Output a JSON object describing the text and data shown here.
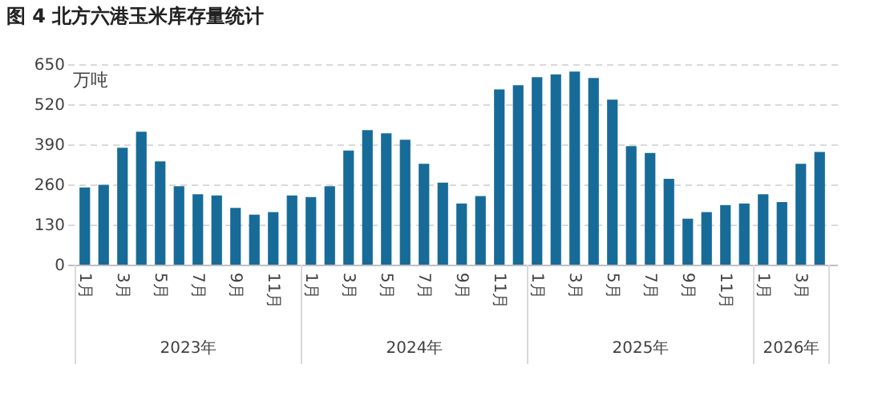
{
  "chart_data": {
    "type": "bar",
    "title": "图 4 北方六港玉米库存量统计",
    "ylabel": "万吨",
    "categories": [
      "1月",
      null,
      "3月",
      null,
      "5月",
      null,
      "7月",
      null,
      "9月",
      null,
      "11月",
      null,
      "1月",
      null,
      "3月",
      null,
      "5月",
      null,
      "7月",
      null,
      "9月",
      null,
      "11月",
      null,
      "1月",
      null,
      "3月",
      null,
      "5月",
      null,
      "7月",
      null,
      "9月",
      null,
      "11月",
      null,
      "1月",
      null,
      "3月",
      null
    ],
    "values": [
      250,
      259,
      379,
      431,
      335,
      254,
      228,
      224,
      184,
      162,
      170,
      224,
      219,
      254,
      370,
      436,
      426,
      405,
      327,
      266,
      198,
      222,
      568,
      582,
      608,
      617,
      626,
      605,
      535,
      384,
      362,
      278,
      149,
      170,
      193,
      198,
      228,
      203,
      327,
      365
    ],
    "color": "#176b98",
    "ylim": [
      0,
      650
    ],
    "yticks": [
      0,
      130,
      260,
      390,
      520,
      650
    ],
    "grid": "y",
    "annotations": [
      "2023年",
      "2024年",
      "2025年",
      "2026年"
    ]
  }
}
